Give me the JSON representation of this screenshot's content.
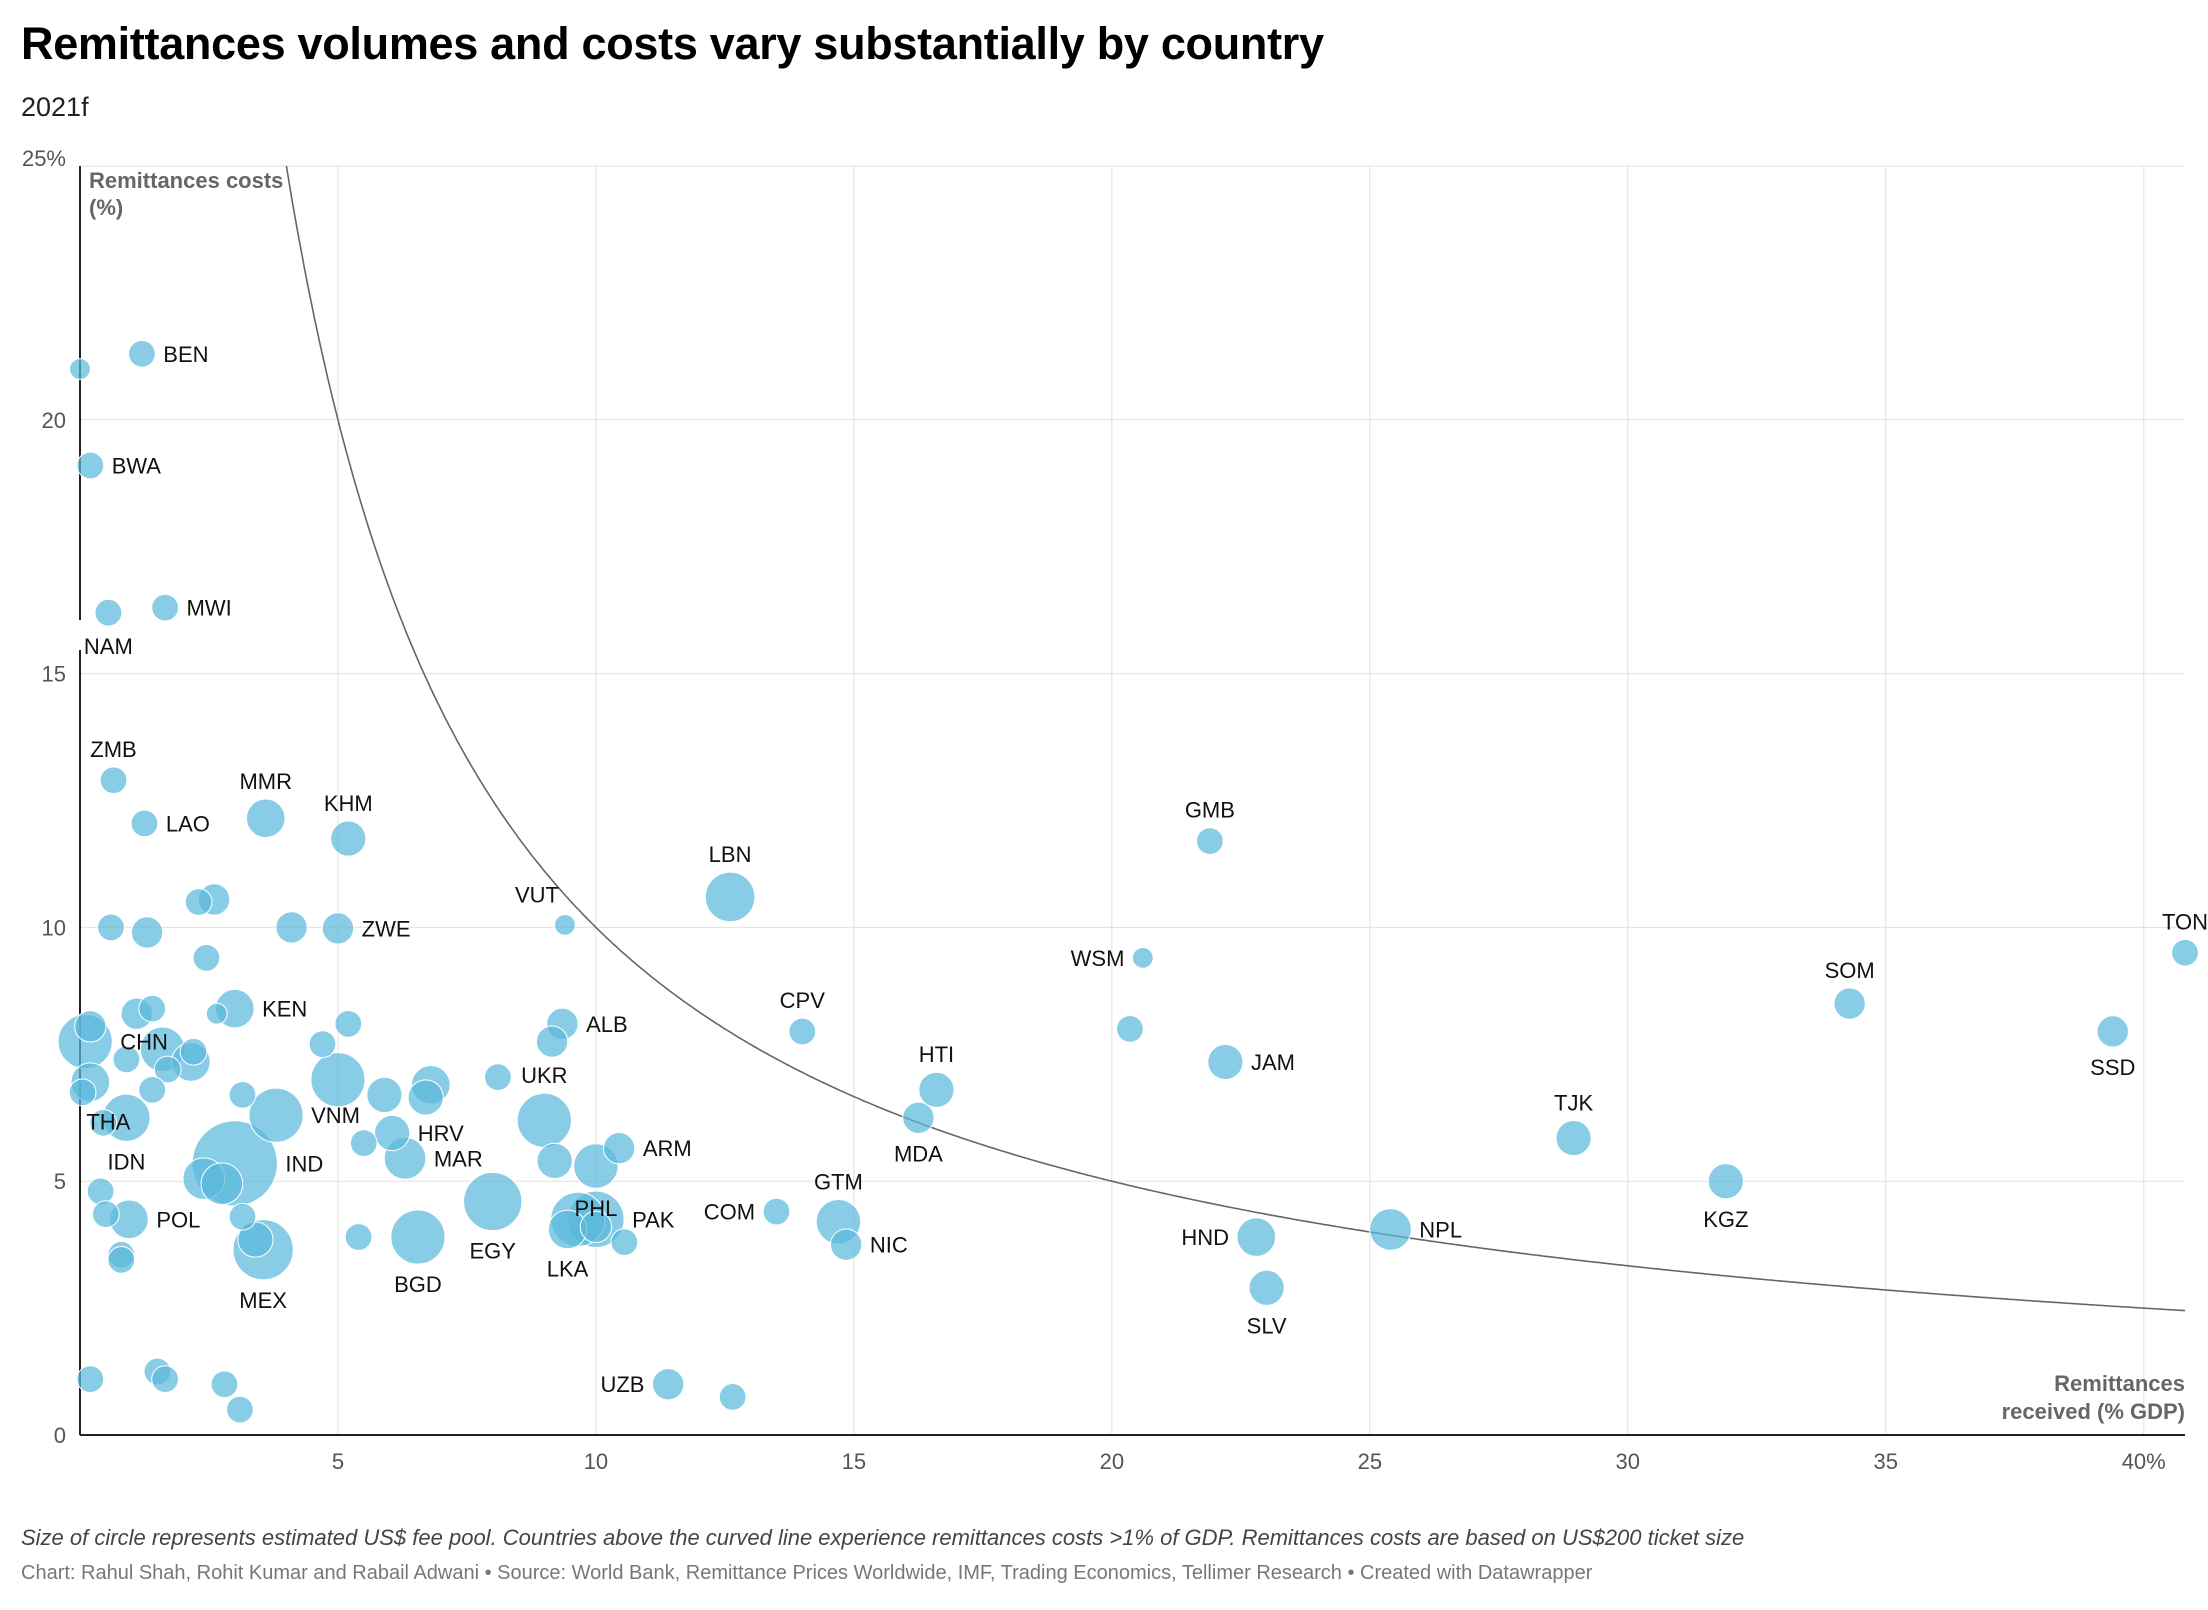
{
  "title": "Remittances volumes and costs vary substantially by country",
  "subtitle": "2021f",
  "note": "Size of circle represents estimated US$ fee pool. Countries above the curved line experience remittances costs >1% of GDP. Remittances costs are based on US$200 ticket size",
  "credits": "Chart: Rahul Shah, Rohit Kumar and Rabail Adwani • Source: World Bank, Remittance Prices Worldwide, IMF, Trading Economics, Tellimer Research • Created with Datawrapper",
  "colors": {
    "bubble": "#5ab8dc",
    "curve": "#666666",
    "grid": "#e0e0e0",
    "axis": "#222222"
  },
  "chart_data": {
    "type": "scatter",
    "ylabel": "Remittances costs (%)",
    "xlabel": "Remittances received (% GDP)",
    "xlim": [
      0,
      40.8
    ],
    "ylim": [
      0,
      25
    ],
    "x_ticks": [
      "5",
      "10",
      "15",
      "20",
      "25",
      "30",
      "35",
      "40%"
    ],
    "y_ticks": [
      "0",
      "5",
      "10",
      "15",
      "20",
      "25%"
    ],
    "grid": true,
    "reference_curve": "y = 100 / x",
    "points": [
      {
        "label": "BEN",
        "x": 1.2,
        "y": 21.3,
        "size": 2
      },
      {
        "label": "",
        "x": 0.0,
        "y": 21.0,
        "size": 1
      },
      {
        "label": "BWA",
        "x": 0.2,
        "y": 19.1,
        "size": 2
      },
      {
        "label": "MWI",
        "x": 1.65,
        "y": 16.3,
        "size": 2
      },
      {
        "label": "NAM",
        "x": 0.55,
        "y": 16.2,
        "size": 2
      },
      {
        "label": "ZMB",
        "x": 0.65,
        "y": 12.9,
        "size": 2
      },
      {
        "label": "LAO",
        "x": 1.25,
        "y": 12.05,
        "size": 2
      },
      {
        "label": "MMR",
        "x": 3.6,
        "y": 12.15,
        "size": 5
      },
      {
        "label": "KHM",
        "x": 5.2,
        "y": 11.75,
        "size": 4
      },
      {
        "label": "GMB",
        "x": 21.9,
        "y": 11.7,
        "size": 2
      },
      {
        "label": "LBN",
        "x": 12.6,
        "y": 10.6,
        "size": 9
      },
      {
        "label": "VUT",
        "x": 9.4,
        "y": 10.05,
        "size": 1
      },
      {
        "label": "ZWE",
        "x": 5.0,
        "y": 9.98,
        "size": 3
      },
      {
        "label": "",
        "x": 4.1,
        "y": 10.0,
        "size": 3
      },
      {
        "label": "",
        "x": 0.6,
        "y": 10.0,
        "size": 2
      },
      {
        "label": "",
        "x": 1.3,
        "y": 9.9,
        "size": 3
      },
      {
        "label": "",
        "x": 2.6,
        "y": 10.55,
        "size": 3
      },
      {
        "label": "",
        "x": 2.3,
        "y": 10.5,
        "size": 2
      },
      {
        "label": "",
        "x": 2.45,
        "y": 9.4,
        "size": 2
      },
      {
        "label": "WSM",
        "x": 20.6,
        "y": 9.4,
        "size": 1
      },
      {
        "label": "TON",
        "x": 40.8,
        "y": 9.5,
        "size": 2
      },
      {
        "label": "SOM",
        "x": 34.3,
        "y": 8.5,
        "size": 3
      },
      {
        "label": "SSD",
        "x": 39.4,
        "y": 7.95,
        "size": 3
      },
      {
        "label": "KEN",
        "x": 3.0,
        "y": 8.4,
        "size": 5
      },
      {
        "label": "",
        "x": 1.1,
        "y": 8.3,
        "size": 3
      },
      {
        "label": "",
        "x": 1.4,
        "y": 8.4,
        "size": 2
      },
      {
        "label": "",
        "x": 2.65,
        "y": 8.3,
        "size": 1
      },
      {
        "label": "ALB",
        "x": 9.35,
        "y": 8.1,
        "size": 3
      },
      {
        "label": "",
        "x": 5.2,
        "y": 8.1,
        "size": 2
      },
      {
        "label": "",
        "x": 9.15,
        "y": 7.75,
        "size": 3
      },
      {
        "label": "",
        "x": 4.7,
        "y": 7.7,
        "size": 2
      },
      {
        "label": "",
        "x": 0.2,
        "y": 8.05,
        "size": 3
      },
      {
        "label": "CPV",
        "x": 14.0,
        "y": 7.95,
        "size": 2
      },
      {
        "label": "",
        "x": 20.35,
        "y": 8.0,
        "size": 2
      },
      {
        "label": "CHN",
        "x": 0.1,
        "y": 7.75,
        "size": 11
      },
      {
        "label": "",
        "x": 0.9,
        "y": 7.4,
        "size": 2
      },
      {
        "label": "",
        "x": 1.6,
        "y": 7.6,
        "size": 7
      },
      {
        "label": "",
        "x": 2.15,
        "y": 7.35,
        "size": 5
      },
      {
        "label": "",
        "x": 2.2,
        "y": 7.55,
        "size": 2
      },
      {
        "label": "",
        "x": 1.7,
        "y": 7.2,
        "size": 2
      },
      {
        "label": "JAM",
        "x": 22.2,
        "y": 7.35,
        "size": 4
      },
      {
        "label": "THA",
        "x": 0.2,
        "y": 6.95,
        "size": 5
      },
      {
        "label": "",
        "x": 0.05,
        "y": 6.75,
        "size": 2
      },
      {
        "label": "",
        "x": 1.4,
        "y": 6.8,
        "size": 2
      },
      {
        "label": "",
        "x": 5.0,
        "y": 7.0,
        "size": 11
      },
      {
        "label": "",
        "x": 5.9,
        "y": 6.7,
        "size": 4
      },
      {
        "label": "",
        "x": 6.7,
        "y": 6.65,
        "size": 4
      },
      {
        "label": "",
        "x": 6.8,
        "y": 6.9,
        "size": 5
      },
      {
        "label": "",
        "x": 3.15,
        "y": 6.7,
        "size": 2
      },
      {
        "label": "",
        "x": 8.1,
        "y": 7.05,
        "size": 2
      },
      {
        "label": "HTI",
        "x": 16.6,
        "y": 6.8,
        "size": 4
      },
      {
        "label": "IDN",
        "x": 0.9,
        "y": 6.25,
        "size": 8
      },
      {
        "label": "",
        "x": 0.45,
        "y": 6.15,
        "size": 2
      },
      {
        "label": "VNM",
        "x": 3.8,
        "y": 6.3,
        "size": 11
      },
      {
        "label": "HRV",
        "x": 6.05,
        "y": 5.95,
        "size": 4
      },
      {
        "label": "",
        "x": 5.5,
        "y": 5.75,
        "size": 2
      },
      {
        "label": "UKR",
        "x": 9.0,
        "y": 6.2,
        "size": 11
      },
      {
        "label": "MDA",
        "x": 16.25,
        "y": 6.25,
        "size": 3
      },
      {
        "label": "TJK",
        "x": 28.95,
        "y": 5.85,
        "size": 4
      },
      {
        "label": "ARM",
        "x": 10.45,
        "y": 5.65,
        "size": 3
      },
      {
        "label": "",
        "x": 9.2,
        "y": 5.4,
        "size": 4
      },
      {
        "label": "MAR",
        "x": 6.3,
        "y": 5.45,
        "size": 6
      },
      {
        "label": "PHL",
        "x": 10.0,
        "y": 5.3,
        "size": 7
      },
      {
        "label": "IND",
        "x": 3.0,
        "y": 5.35,
        "size": 30
      },
      {
        "label": "",
        "x": 2.4,
        "y": 5.05,
        "size": 6
      },
      {
        "label": "",
        "x": 2.75,
        "y": 4.95,
        "size": 6
      },
      {
        "label": "",
        "x": 0.4,
        "y": 4.8,
        "size": 2
      },
      {
        "label": "KGZ",
        "x": 31.9,
        "y": 5.0,
        "size": 4
      },
      {
        "label": "EGY",
        "x": 8.0,
        "y": 4.6,
        "size": 13
      },
      {
        "label": "GTM",
        "x": 14.7,
        "y": 4.2,
        "size": 7
      },
      {
        "label": "COM",
        "x": 13.5,
        "y": 4.4,
        "size": 2
      },
      {
        "label": "PAK",
        "x": 10.0,
        "y": 4.25,
        "size": 12
      },
      {
        "label": "",
        "x": 9.65,
        "y": 4.25,
        "size": 11
      },
      {
        "label": "LKA",
        "x": 9.45,
        "y": 4.05,
        "size": 5
      },
      {
        "label": "",
        "x": 10.0,
        "y": 4.1,
        "size": 3
      },
      {
        "label": "",
        "x": 10.55,
        "y": 3.8,
        "size": 2
      },
      {
        "label": "NIC",
        "x": 14.85,
        "y": 3.75,
        "size": 3
      },
      {
        "label": "NPL",
        "x": 25.4,
        "y": 4.05,
        "size": 6
      },
      {
        "label": "HND",
        "x": 22.8,
        "y": 3.9,
        "size": 5
      },
      {
        "label": "POL",
        "x": 0.95,
        "y": 4.25,
        "size": 5
      },
      {
        "label": "",
        "x": 0.5,
        "y": 4.35,
        "size": 2
      },
      {
        "label": "",
        "x": 3.15,
        "y": 4.3,
        "size": 2
      },
      {
        "label": "BGD",
        "x": 6.55,
        "y": 3.9,
        "size": 11
      },
      {
        "label": "",
        "x": 5.4,
        "y": 3.9,
        "size": 2
      },
      {
        "label": "MEX",
        "x": 3.55,
        "y": 3.65,
        "size": 14
      },
      {
        "label": "",
        "x": 3.4,
        "y": 3.85,
        "size": 4
      },
      {
        "label": "",
        "x": 0.8,
        "y": 3.55,
        "size": 2
      },
      {
        "label": "",
        "x": 0.8,
        "y": 3.45,
        "size": 2
      },
      {
        "label": "SLV",
        "x": 23.0,
        "y": 2.9,
        "size": 4
      },
      {
        "label": "UZB",
        "x": 11.4,
        "y": 1.0,
        "size": 3
      },
      {
        "label": "",
        "x": 12.65,
        "y": 0.75,
        "size": 2
      },
      {
        "label": "",
        "x": 0.2,
        "y": 1.1,
        "size": 2
      },
      {
        "label": "",
        "x": 1.5,
        "y": 1.25,
        "size": 2
      },
      {
        "label": "",
        "x": 1.65,
        "y": 1.1,
        "size": 2
      },
      {
        "label": "",
        "x": 2.8,
        "y": 1.0,
        "size": 2
      },
      {
        "label": "",
        "x": 3.1,
        "y": 0.5,
        "size": 2
      }
    ]
  }
}
